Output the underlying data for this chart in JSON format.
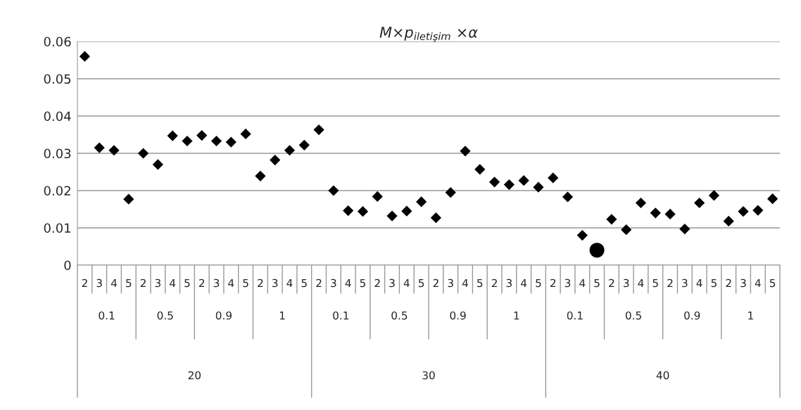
{
  "chart_data": {
    "type": "scatter",
    "title": "M×p$_{iletişim}$ ×α",
    "categories": [
      "2",
      "3",
      "4",
      "5",
      "2",
      "3",
      "4",
      "5",
      "2",
      "3",
      "4",
      "5",
      "2",
      "3",
      "4",
      "5",
      "2",
      "3",
      "4",
      "5",
      "2",
      "3",
      "4",
      "5",
      "2",
      "3",
      "4",
      "5",
      "2",
      "3",
      "4",
      "5",
      "2",
      "3",
      "4",
      "5",
      "2",
      "3",
      "4",
      "5",
      "2",
      "3",
      "4",
      "5",
      "2",
      "3",
      "4",
      "5"
    ],
    "annotations": [
      "0.1",
      "0.5",
      "0.9",
      "1",
      "0.1",
      "0.5",
      "0.9",
      "1",
      "0.1",
      "0.5",
      "0.9",
      "1",
      "20",
      "30",
      "40"
    ],
    "series": [
      {
        "color": "#000000",
        "marker": "diamond",
        "values": [
          0.056,
          0.0315,
          0.0308,
          0.0177,
          0.03,
          0.027,
          0.0347,
          0.0333,
          0.0348,
          0.0333,
          0.033,
          0.0352,
          0.0239,
          0.0282,
          0.0308,
          0.0322,
          0.0363,
          0.02,
          0.0146,
          0.0144,
          0.0184,
          0.0132,
          0.0145,
          0.017,
          0.0127,
          0.0195,
          0.0306,
          0.0257,
          0.0223,
          0.0216,
          0.0227,
          0.0209,
          0.0234,
          0.0183,
          0.008,
          null,
          0.0123,
          0.0095,
          0.0167,
          0.014,
          0.0137,
          0.0097,
          0.0167,
          0.0187,
          0.0118,
          0.0144,
          0.0147,
          0.0178
        ]
      },
      {
        "color": "#000000",
        "marker": "circle",
        "values": [
          null,
          null,
          null,
          null,
          null,
          null,
          null,
          null,
          null,
          null,
          null,
          null,
          null,
          null,
          null,
          null,
          null,
          null,
          null,
          null,
          null,
          null,
          null,
          null,
          null,
          null,
          null,
          null,
          null,
          null,
          null,
          null,
          null,
          null,
          null,
          0.004,
          null,
          null,
          null,
          null,
          null,
          null,
          null,
          null,
          null,
          null,
          null,
          null
        ]
      }
    ],
    "ylim": [
      0,
      0.06
    ],
    "yticks": [
      {
        "value": 0,
        "label": "0"
      },
      0.01,
      0.02,
      0.03,
      0.04,
      0.05,
      0.06
    ],
    "grid": "y"
  }
}
